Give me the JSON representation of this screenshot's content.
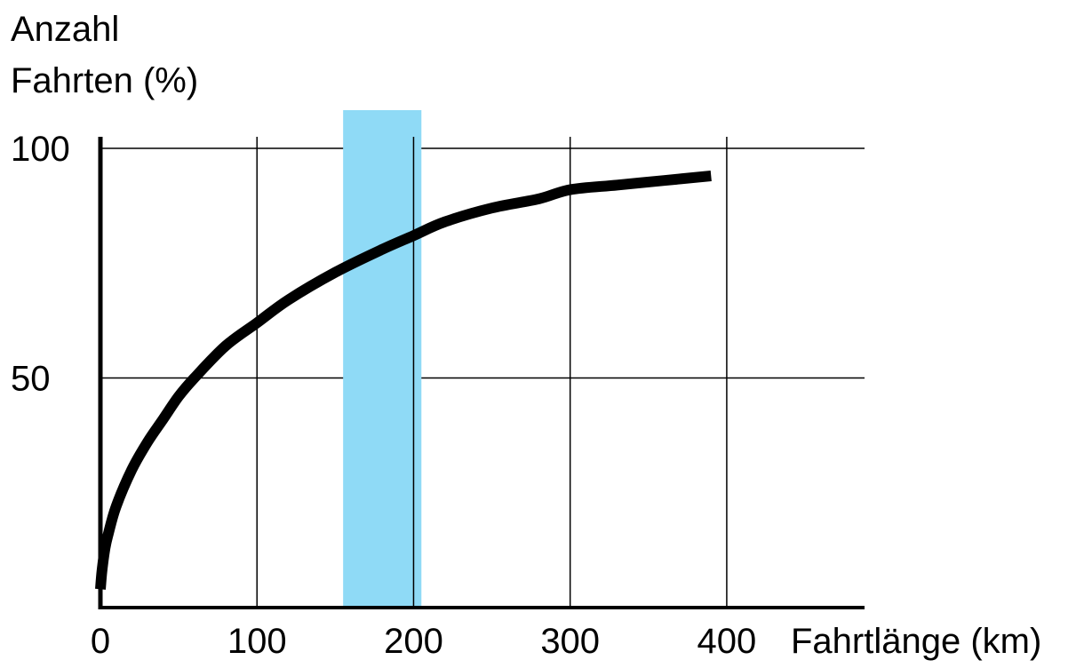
{
  "chart_data": {
    "type": "line",
    "ylabel_lines": [
      "Anzahl",
      "Fahrten (%)"
    ],
    "xlabel": "Fahrtlänge (km)",
    "xlim": [
      0,
      488
    ],
    "ylim": [
      0,
      100
    ],
    "grid": true,
    "x_ticks": [
      0,
      100,
      200,
      300,
      400
    ],
    "x_tick_labels": [
      "0",
      "100",
      "200",
      "300",
      "400"
    ],
    "y_ticks": [
      50,
      100
    ],
    "y_tick_labels": [
      "50",
      "100"
    ],
    "highlight_band": {
      "x_from": 155,
      "x_to": 205,
      "color": "#8fdaf6"
    },
    "series": [
      {
        "color": "#000000",
        "x": [
          0,
          1,
          3,
          5,
          10,
          20,
          30,
          40,
          50,
          60,
          80,
          100,
          120,
          150,
          180,
          200,
          220,
          250,
          280,
          300,
          330,
          360,
          390
        ],
        "y": [
          4,
          8,
          13,
          16,
          22,
          30,
          36,
          41,
          46,
          50,
          57,
          62,
          67,
          73,
          78,
          81,
          84,
          87,
          89,
          91,
          92,
          93,
          94
        ]
      }
    ]
  }
}
